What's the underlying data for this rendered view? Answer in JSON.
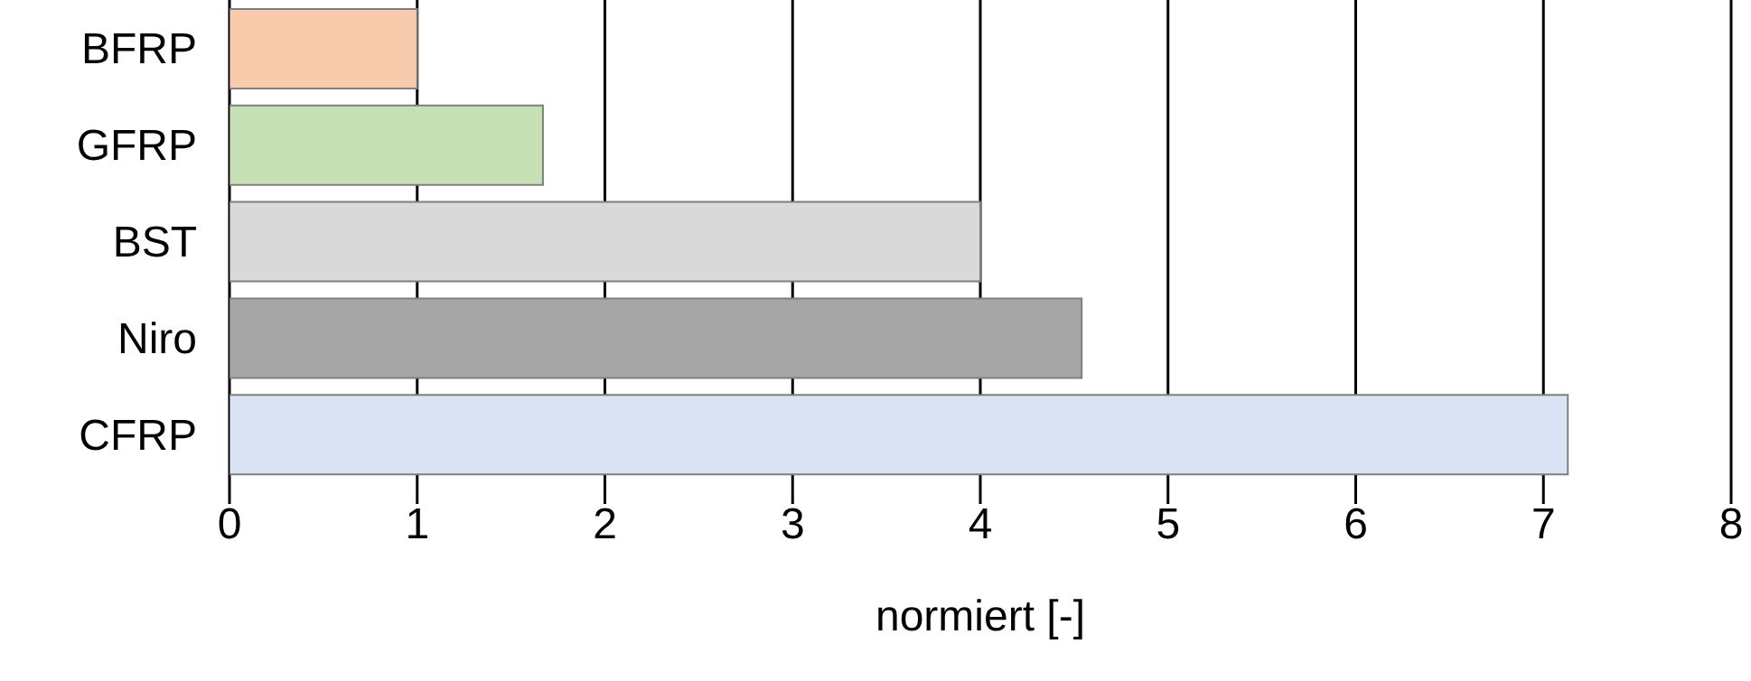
{
  "chart_data": {
    "type": "bar",
    "orientation": "horizontal",
    "xlabel": "normiert [-]",
    "categories": [
      "BFRP",
      "GFRP",
      "BST",
      "Niro",
      "CFRP"
    ],
    "values": [
      1,
      1.67,
      4,
      4.54,
      7.13
    ],
    "colors": [
      "#f8cbad",
      "#c5e0b4",
      "#d9d9d9",
      "#a6a6a6",
      "#dae3f3"
    ],
    "xlim": [
      0,
      8
    ],
    "xticks": [
      0,
      1,
      2,
      3,
      4,
      5,
      6,
      7,
      8
    ],
    "grid": "x"
  }
}
